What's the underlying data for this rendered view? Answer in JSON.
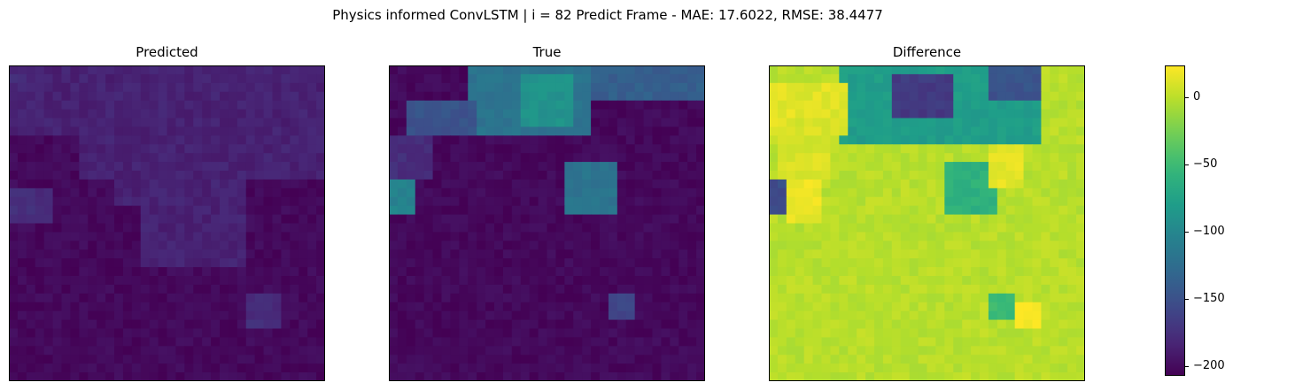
{
  "figure": {
    "suptitle": "Physics informed ConvLSTM | i = 82 Predict Frame - MAE: 17.6022, RMSE: 38.4477"
  },
  "chart_data": [
    {
      "type": "heatmap",
      "title": "Predicted",
      "grid_size": [
        36,
        36
      ],
      "colormap": "viridis",
      "vmin": -210,
      "vmax": 25,
      "ticks_visible": false,
      "background_value": -205,
      "regions": [
        {
          "rows": [
            0,
            7
          ],
          "cols": [
            0,
            35
          ],
          "value": -188
        },
        {
          "rows": [
            0,
            2
          ],
          "cols": [
            0,
            3
          ],
          "value": -182
        },
        {
          "rows": [
            7,
            12
          ],
          "cols": [
            8,
            35
          ],
          "value": -188
        },
        {
          "rows": [
            12,
            15
          ],
          "cols": [
            12,
            26
          ],
          "value": -188
        },
        {
          "rows": [
            15,
            22
          ],
          "cols": [
            15,
            26
          ],
          "value": -188
        },
        {
          "rows": [
            14,
            17
          ],
          "cols": [
            0,
            4
          ],
          "value": -180
        },
        {
          "rows": [
            26,
            29
          ],
          "cols": [
            27,
            30
          ],
          "value": -180
        }
      ]
    },
    {
      "type": "heatmap",
      "title": "True",
      "grid_size": [
        36,
        36
      ],
      "colormap": "viridis",
      "vmin": -210,
      "vmax": 25,
      "ticks_visible": false,
      "background_value": -205,
      "regions": [
        {
          "rows": [
            0,
            3
          ],
          "cols": [
            9,
            35
          ],
          "value": -140
        },
        {
          "rows": [
            0,
            7
          ],
          "cols": [
            9,
            22
          ],
          "value": -120
        },
        {
          "rows": [
            1,
            6
          ],
          "cols": [
            15,
            20
          ],
          "value": -90
        },
        {
          "rows": [
            4,
            7
          ],
          "cols": [
            2,
            9
          ],
          "value": -150
        },
        {
          "rows": [
            8,
            12
          ],
          "cols": [
            0,
            4
          ],
          "value": -180
        },
        {
          "rows": [
            13,
            16
          ],
          "cols": [
            0,
            2
          ],
          "value": -105
        },
        {
          "rows": [
            11,
            16
          ],
          "cols": [
            20,
            25
          ],
          "value": -120
        },
        {
          "rows": [
            26,
            28
          ],
          "cols": [
            25,
            27
          ],
          "value": -160
        }
      ]
    },
    {
      "type": "heatmap",
      "title": "Difference",
      "grid_size": [
        36,
        36
      ],
      "colormap": "viridis",
      "vmin": -210,
      "vmax": 25,
      "ticks_visible": false,
      "background_value": 0,
      "regions": [
        {
          "rows": [
            0,
            8
          ],
          "cols": [
            8,
            30
          ],
          "value": -80
        },
        {
          "rows": [
            1,
            5
          ],
          "cols": [
            14,
            20
          ],
          "value": -170
        },
        {
          "rows": [
            0,
            3
          ],
          "cols": [
            25,
            30
          ],
          "value": -150
        },
        {
          "rows": [
            2,
            7
          ],
          "cols": [
            0,
            8
          ],
          "value": 15
        },
        {
          "rows": [
            6,
            12
          ],
          "cols": [
            1,
            6
          ],
          "value": 12
        },
        {
          "rows": [
            13,
            16
          ],
          "cols": [
            0,
            2
          ],
          "value": -155
        },
        {
          "rows": [
            13,
            17
          ],
          "cols": [
            2,
            5
          ],
          "value": 18
        },
        {
          "rows": [
            11,
            16
          ],
          "cols": [
            20,
            25
          ],
          "value": -60
        },
        {
          "rows": [
            9,
            13
          ],
          "cols": [
            25,
            28
          ],
          "value": 15
        },
        {
          "rows": [
            26,
            28
          ],
          "cols": [
            25,
            27
          ],
          "value": -50
        },
        {
          "rows": [
            27,
            29
          ],
          "cols": [
            28,
            30
          ],
          "value": 22
        }
      ]
    }
  ],
  "colorbar": {
    "colormap": "viridis",
    "vmin": -207,
    "vmax": 24,
    "tick_labels": [
      "0",
      "−50",
      "−100",
      "−150",
      "−200"
    ],
    "tick_values": [
      0,
      -50,
      -100,
      -150,
      -200
    ]
  }
}
